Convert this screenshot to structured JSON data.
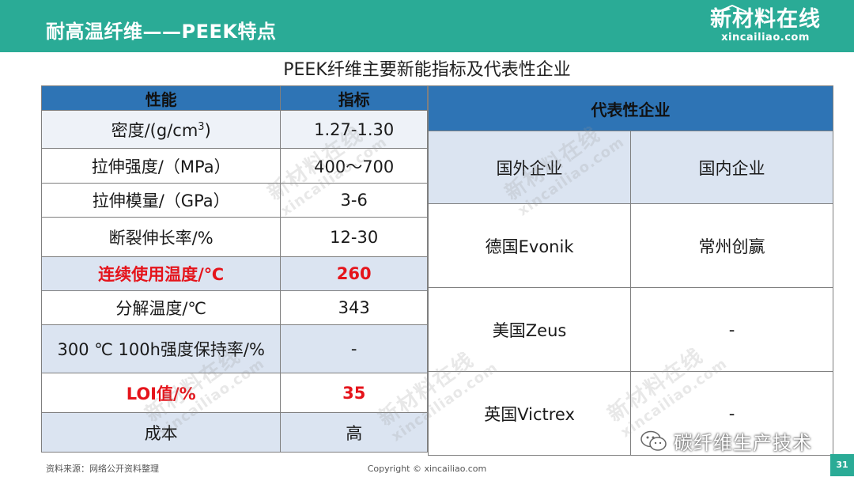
{
  "header": {
    "title": "耐高温纤维——PEEK特点",
    "brand_cn": "新材料在线",
    "brand_en": "xincailiao.com"
  },
  "subtitle": "PEEK纤维主要新能指标及代表性企业",
  "left_table": {
    "headers": [
      "性能",
      "指标"
    ],
    "rows": [
      {
        "property": "密度/(g/cm",
        "property_sup": "3",
        "property_tail": ")",
        "value": "1.27-1.30"
      },
      {
        "property": "拉伸强度/（MPa）",
        "value": "400～700"
      },
      {
        "property": "拉伸模量/（GPa）",
        "value": "3-6"
      },
      {
        "property": "断裂伸长率/%",
        "value": "12-30"
      },
      {
        "property": "连续使用温度/℃",
        "value": "260"
      },
      {
        "property": "分解温度/℃",
        "value": "343"
      },
      {
        "property": "300 ℃ 100h强度保持率/%",
        "value": "-"
      },
      {
        "property": "LOI值/%",
        "value": "35"
      },
      {
        "property": "成本",
        "value": "高"
      }
    ]
  },
  "right_table": {
    "header": "代表性企业",
    "subheaders": [
      "国外企业",
      "国内企业"
    ],
    "rows": [
      {
        "foreign": "德国Evonik",
        "domestic": "常州创赢"
      },
      {
        "foreign": "美国Zeus",
        "domestic": "-"
      },
      {
        "foreign": "英国Victrex",
        "domestic": "-"
      }
    ]
  },
  "watermark": {
    "cn": "新材料在线",
    "en": "xincailiao.com"
  },
  "footer": {
    "source": "资料来源：网络公开资料整理",
    "copyright": "Copyright © xincailiao.com",
    "page": "31",
    "wechat": "碳纤维生产技术"
  },
  "colors": {
    "header": "#2aab96",
    "table_head": "#2e74b5",
    "row_alt": "#dbe4f1",
    "highlight": "#e5141b"
  }
}
